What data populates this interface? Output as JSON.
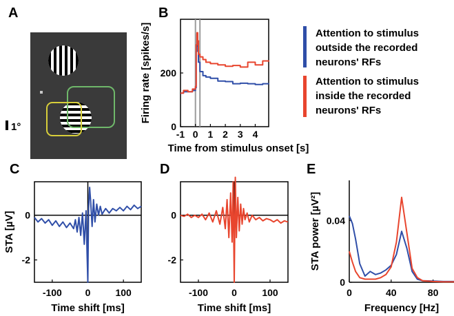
{
  "panel_labels": {
    "a": "A",
    "b": "B",
    "c": "C",
    "d": "D",
    "e": "E"
  },
  "panel_a": {
    "scale_label": "1°",
    "background": "#3a3a3a",
    "rf_box_color": "#6fb86a",
    "attention_box_color": "#d8cf3a"
  },
  "legend": {
    "blue": [
      "Attention to stimulus",
      "outside the recorded",
      "neurons' RFs"
    ],
    "red": [
      "Attention to stimulus",
      "inside the recorded",
      "neurons' RFs"
    ]
  },
  "colors": {
    "blue": "#2f4ea8",
    "red": "#e8452e",
    "marker": "#9a9a9a"
  },
  "chart_data": [
    {
      "panel": "B",
      "type": "line",
      "xlabel": "Time from stimulus onset [s]",
      "ylabel": "Firing rate [spikes/s]",
      "xticks": [
        "-1",
        "0",
        "1",
        "2",
        "3",
        "4"
      ],
      "yticks": [
        "0",
        "200"
      ],
      "xlim": [
        -1,
        4.9
      ],
      "ylim": [
        0,
        400
      ],
      "markers_x": [
        0,
        0.3
      ],
      "series": [
        {
          "color": "blue",
          "x": [
            -1,
            -0.8,
            -0.5,
            -0.2,
            0,
            0.05,
            0.1,
            0.15,
            0.2,
            0.3,
            0.5,
            0.7,
            1.0,
            1.5,
            2.0,
            2.5,
            3.0,
            3.5,
            4.0,
            4.5,
            4.9
          ],
          "y": [
            125,
            130,
            130,
            135,
            145,
            280,
            345,
            300,
            240,
            205,
            190,
            185,
            180,
            170,
            168,
            160,
            162,
            160,
            157,
            160,
            158
          ]
        },
        {
          "color": "red",
          "x": [
            -1,
            -0.8,
            -0.5,
            -0.2,
            0,
            0.05,
            0.1,
            0.15,
            0.2,
            0.3,
            0.5,
            0.7,
            1.0,
            1.5,
            2.0,
            2.5,
            3.0,
            3.5,
            4.0,
            4.5,
            4.9
          ],
          "y": [
            125,
            135,
            130,
            140,
            150,
            305,
            350,
            320,
            270,
            260,
            250,
            240,
            235,
            230,
            225,
            228,
            222,
            240,
            230,
            245,
            242
          ]
        }
      ]
    },
    {
      "panel": "C",
      "type": "line",
      "xlabel": "Time shift [ms]",
      "ylabel": "STA [µV]",
      "xticks": [
        "-100",
        "0",
        "100"
      ],
      "yticks": [
        "0",
        "-2"
      ],
      "xlim": [
        -150,
        150
      ],
      "ylim": [
        -3,
        1.5
      ],
      "series": [
        {
          "color": "blue",
          "x": [
            -150,
            -140,
            -130,
            -120,
            -110,
            -100,
            -90,
            -80,
            -70,
            -60,
            -50,
            -40,
            -35,
            -30,
            -25,
            -20,
            -15,
            -10,
            -5,
            -2,
            0,
            2,
            5,
            8,
            12,
            16,
            20,
            25,
            30,
            35,
            40,
            50,
            60,
            70,
            80,
            90,
            100,
            110,
            120,
            130,
            140,
            150
          ],
          "y": [
            -0.1,
            -0.3,
            -0.15,
            -0.35,
            -0.2,
            -0.45,
            -0.25,
            -0.5,
            -0.3,
            -0.55,
            -0.35,
            -0.6,
            -0.2,
            -0.75,
            -0.1,
            -0.9,
            0.1,
            -1.3,
            0.2,
            -1.8,
            -3.0,
            0.3,
            1.25,
            0.6,
            -0.5,
            0.7,
            -0.3,
            0.5,
            0.0,
            0.4,
            0.05,
            0.3,
            0.1,
            0.3,
            0.2,
            0.35,
            0.2,
            0.4,
            0.25,
            0.45,
            0.3,
            0.4
          ]
        }
      ]
    },
    {
      "panel": "D",
      "type": "line",
      "xlabel": "Time shift [ms]",
      "ylabel": "",
      "xticks": [
        "-100",
        "0",
        "100"
      ],
      "yticks": [
        "0",
        "-2"
      ],
      "xlim": [
        -150,
        150
      ],
      "ylim": [
        -3,
        1.5
      ],
      "series": [
        {
          "color": "red",
          "x": [
            -150,
            -140,
            -130,
            -120,
            -110,
            -100,
            -90,
            -80,
            -70,
            -60,
            -50,
            -40,
            -32,
            -25,
            -20,
            -15,
            -10,
            -6,
            -3,
            0,
            3,
            6,
            10,
            14,
            18,
            22,
            26,
            30,
            36,
            42,
            50,
            60,
            70,
            80,
            90,
            100,
            110,
            120,
            130,
            140,
            150
          ],
          "y": [
            0.0,
            -0.05,
            0.05,
            -0.1,
            0.0,
            -0.1,
            0.05,
            -0.2,
            0.1,
            -0.3,
            0.2,
            -0.4,
            0.35,
            -0.6,
            0.7,
            -1.0,
            1.0,
            -1.2,
            1.5,
            -3.0,
            1.7,
            -1.0,
            0.8,
            -0.7,
            0.5,
            -0.4,
            0.3,
            -0.2,
            0.1,
            -0.3,
            0.0,
            -0.2,
            -0.1,
            -0.25,
            -0.15,
            -0.2,
            -0.3,
            -0.2,
            -0.35,
            -0.25,
            -0.3
          ]
        }
      ]
    },
    {
      "panel": "E",
      "type": "line",
      "xlabel": "Frequency [Hz]",
      "ylabel": "STA power [µV²]",
      "xticks": [
        "0",
        "40",
        "80"
      ],
      "yticks": [
        "0",
        "0.04"
      ],
      "xlim": [
        0,
        100
      ],
      "ylim": [
        0,
        0.066
      ],
      "series": [
        {
          "color": "blue",
          "x": [
            0,
            3,
            6,
            10,
            15,
            20,
            25,
            30,
            35,
            40,
            45,
            50,
            55,
            60,
            65,
            70,
            80,
            90,
            100
          ],
          "y": [
            0.043,
            0.038,
            0.028,
            0.012,
            0.004,
            0.007,
            0.005,
            0.006,
            0.008,
            0.011,
            0.018,
            0.033,
            0.022,
            0.007,
            0.002,
            0.001,
            0.0008,
            0.0005,
            0.0005
          ]
        },
        {
          "color": "red",
          "x": [
            0,
            3,
            6,
            10,
            15,
            20,
            25,
            30,
            35,
            40,
            45,
            50,
            55,
            60,
            65,
            70,
            80,
            90,
            100
          ],
          "y": [
            0.02,
            0.013,
            0.007,
            0.003,
            0.002,
            0.002,
            0.002,
            0.003,
            0.005,
            0.01,
            0.026,
            0.055,
            0.032,
            0.009,
            0.003,
            0.001,
            0.0005,
            0.0003,
            0.0003
          ]
        }
      ]
    }
  ]
}
